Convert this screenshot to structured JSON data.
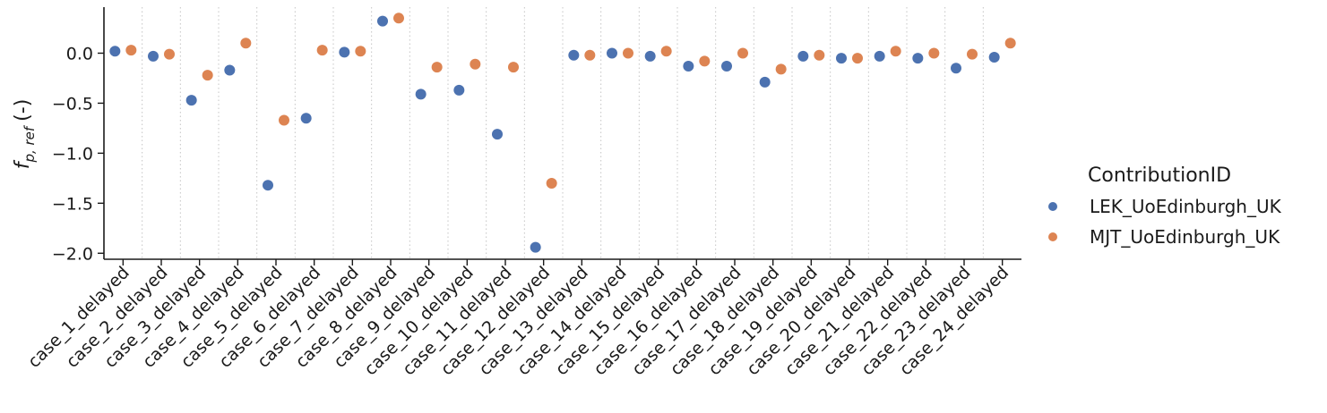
{
  "chart_data": {
    "type": "scatter",
    "title": "",
    "xlabel": "",
    "ylabel": "f_{p,ref} (-)",
    "ylabel_parts": {
      "symbol": "f",
      "subscript": "p, ref",
      "unit": "(-)"
    },
    "ylim": [
      -2.06,
      0.46
    ],
    "yticks": [
      "0.0",
      "−0.5",
      "−1.0",
      "−1.5",
      "−2.0"
    ],
    "ytick_values": [
      0.0,
      -0.5,
      -1.0,
      -1.5,
      -2.0
    ],
    "grid": "vertical dotted separators between categories",
    "legend_position": "right",
    "legend_title": "ContributionID",
    "categories": [
      "case_1_delayed",
      "case_2_delayed",
      "case_3_delayed",
      "case_4_delayed",
      "case_5_delayed",
      "case_6_delayed",
      "case_7_delayed",
      "case_8_delayed",
      "case_9_delayed",
      "case_10_delayed",
      "case_11_delayed",
      "case_12_delayed",
      "case_13_delayed",
      "case_14_delayed",
      "case_15_delayed",
      "case_16_delayed",
      "case_17_delayed",
      "case_18_delayed",
      "case_19_delayed",
      "case_20_delayed",
      "case_21_delayed",
      "case_22_delayed",
      "case_23_delayed",
      "case_24_delayed"
    ],
    "series": [
      {
        "name": "LEK_UoEdinburgh_UK",
        "color": "#4c72b0",
        "values": [
          0.02,
          -0.03,
          -0.47,
          -0.17,
          -1.32,
          -0.65,
          0.01,
          0.32,
          -0.41,
          -0.37,
          -0.81,
          -1.94,
          -0.02,
          0.0,
          -0.03,
          -0.13,
          -0.13,
          -0.29,
          -0.03,
          -0.05,
          -0.03,
          -0.05,
          -0.15,
          -0.04
        ]
      },
      {
        "name": "MJT_UoEdinburgh_UK",
        "color": "#dd8452",
        "values": [
          0.03,
          -0.01,
          -0.22,
          0.1,
          -0.67,
          0.03,
          0.02,
          0.35,
          -0.14,
          -0.11,
          -0.14,
          -1.3,
          -0.02,
          0.0,
          0.02,
          -0.08,
          0.0,
          -0.16,
          -0.02,
          -0.05,
          0.02,
          0.0,
          -0.01,
          0.1
        ]
      }
    ]
  }
}
